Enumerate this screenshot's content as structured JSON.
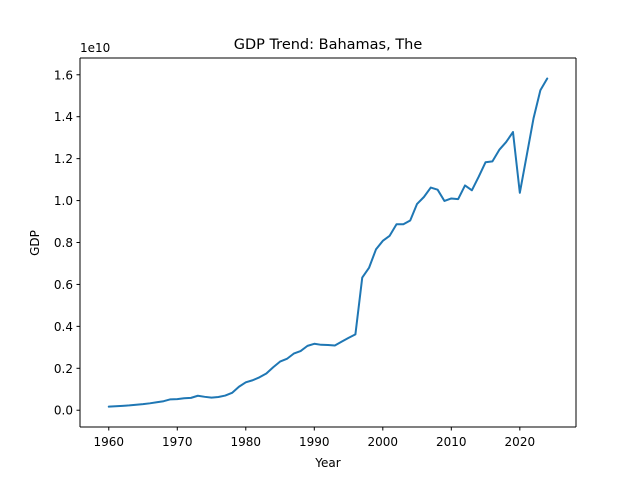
{
  "chart_data": {
    "type": "line",
    "title": "GDP Trend: Bahamas, The",
    "xlabel": "Year",
    "ylabel": "GDP",
    "y_offset_label": "1e10",
    "xlim": [
      1955.8,
      2028.2
    ],
    "ylim": [
      -0.8,
      16.8
    ],
    "x_ticks": [
      1960,
      1970,
      1980,
      1990,
      2000,
      2010,
      2020
    ],
    "y_ticks": [
      0.0,
      0.2,
      0.4,
      0.6,
      0.8,
      1.0,
      1.2,
      1.4,
      1.6
    ],
    "grid": false,
    "line_color": "#1f77b4",
    "series": [
      {
        "x": [
          1960,
          1961,
          1962,
          1963,
          1964,
          1965,
          1966,
          1967,
          1968,
          1969,
          1970,
          1971,
          1972,
          1973,
          1974,
          1975,
          1976,
          1977,
          1978,
          1979,
          1980,
          1981,
          1982,
          1983,
          1984,
          1985,
          1986,
          1987,
          1988,
          1989,
          1990,
          1991,
          1992,
          1993,
          1994,
          1995,
          1996,
          1997,
          1998,
          1999,
          2000,
          2001,
          2002,
          2003,
          2004,
          2005,
          2006,
          2007,
          2008,
          2009,
          2010,
          2011,
          2012,
          2013,
          2014,
          2015,
          2016,
          2017,
          2018,
          2019,
          2020,
          2021,
          2022,
          2023,
          2024
        ],
        "values": [
          0.17,
          0.19,
          0.21,
          0.23,
          0.26,
          0.29,
          0.33,
          0.38,
          0.43,
          0.52,
          0.53,
          0.57,
          0.59,
          0.69,
          0.64,
          0.6,
          0.63,
          0.7,
          0.83,
          1.12,
          1.33,
          1.43,
          1.57,
          1.75,
          2.05,
          2.32,
          2.45,
          2.7,
          2.82,
          3.07,
          3.17,
          3.12,
          3.11,
          3.09,
          3.27,
          3.45,
          3.62,
          6.33,
          6.8,
          7.67,
          8.08,
          8.32,
          8.87,
          8.87,
          9.05,
          9.84,
          10.17,
          10.62,
          10.52,
          9.98,
          10.1,
          10.07,
          10.72,
          10.49,
          11.14,
          11.83,
          11.87,
          12.42,
          12.79,
          13.27,
          10.37,
          12.14,
          13.92,
          15.26,
          15.82
        ]
      }
    ]
  }
}
